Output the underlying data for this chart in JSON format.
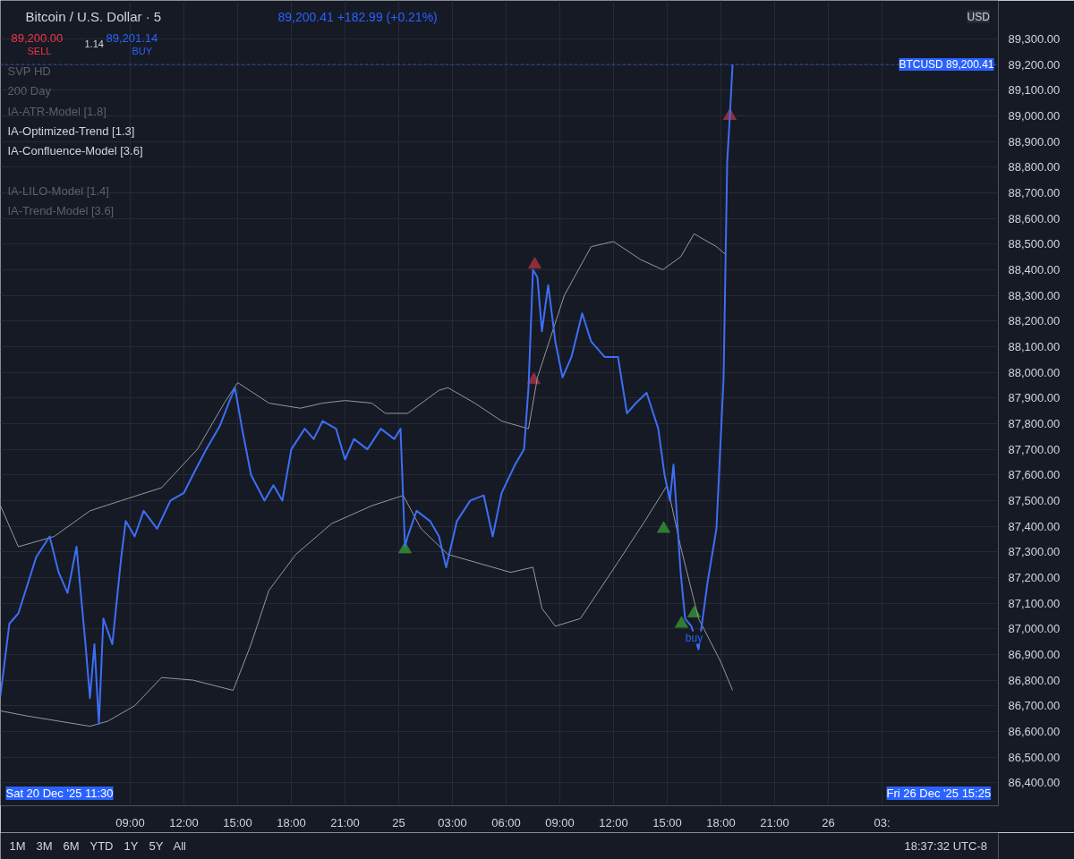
{
  "chart_data": {
    "type": "line",
    "title": "Bitcoin / U.S. Dollar · 5",
    "subtitle": "89,200.41 +182.99 (+0.21%)",
    "series": [
      {
        "color": "#9598a1",
        "x": [
          "2025-12-24T01:45",
          "2025-12-24T02:45",
          "2025-12-24T04:45",
          "2025-12-24T06:45",
          "2025-12-24T08:30",
          "2025-12-24T10:45",
          "2025-12-24T12:45",
          "2025-12-24T14:15",
          "2025-12-24T15:00",
          "2025-12-24T16:45",
          "2025-12-24T18:30",
          "2025-12-24T19:45",
          "2025-12-24T21:00",
          "2025-12-24T22:30",
          "2025-12-24T23:15",
          "2025-12-25T00:30",
          "2025-12-25T02:15",
          "2025-12-25T02:45",
          "2025-12-25T04:15",
          "2025-12-25T05:45",
          "2025-12-25T07:15",
          "2025-12-25T07:45",
          "2025-12-25T09:15",
          "2025-12-25T10:45",
          "2025-12-25T12:00",
          "2025-12-25T13:30",
          "2025-12-25T14:45",
          "2025-12-25T15:45",
          "2025-12-25T16:30",
          "2025-12-25T17:45",
          "2025-12-25T18:15"
        ],
        "values": [
          87480,
          87320,
          87360,
          87460,
          87500,
          87550,
          87700,
          87880,
          87960,
          87880,
          87860,
          87880,
          87890,
          87880,
          87840,
          87840,
          87930,
          87940,
          87880,
          87810,
          87780,
          87980,
          88300,
          88490,
          88510,
          88440,
          88400,
          88450,
          88540,
          88490,
          88460
        ]
      },
      {
        "color": "#9598a1",
        "x": [
          "2025-12-24T01:45",
          "2025-12-24T03:15",
          "2025-12-24T05:00",
          "2025-12-24T06:45",
          "2025-12-24T07:45",
          "2025-12-24T09:15",
          "2025-12-24T10:45",
          "2025-12-24T12:30",
          "2025-12-24T14:45",
          "2025-12-24T15:45",
          "2025-12-24T16:45",
          "2025-12-24T18:15",
          "2025-12-24T20:15",
          "2025-12-24T22:30",
          "2025-12-25T00:15",
          "2025-12-25T01:15",
          "2025-12-25T02:45",
          "2025-12-25T04:15",
          "2025-12-25T06:15",
          "2025-12-25T07:30",
          "2025-12-25T08:00",
          "2025-12-25T08:45",
          "2025-12-25T10:09",
          "2025-12-25T12:15",
          "2025-12-25T13:45",
          "2025-12-25T15:00",
          "2025-12-25T15:45",
          "2025-12-25T16:45",
          "2025-12-25T18:00",
          "2025-12-25T18:39"
        ],
        "values": [
          86680,
          86660,
          86640,
          86620,
          86640,
          86700,
          86810,
          86800,
          86760,
          86940,
          87150,
          87290,
          87410,
          87480,
          87520,
          87390,
          87290,
          87260,
          87220,
          87240,
          87080,
          87010,
          87040,
          87260,
          87420,
          87560,
          87320,
          87040,
          86870,
          86760
        ]
      },
      {
        "color": "#3d6ef5",
        "x": [
          "2025-12-24T01:45",
          "2025-12-24T02:15",
          "2025-12-24T02:45",
          "2025-12-24T03:45",
          "2025-12-24T04:30",
          "2025-12-24T05:00",
          "2025-12-24T05:30",
          "2025-12-24T06:00",
          "2025-12-24T06:30",
          "2025-12-24T06:45",
          "2025-12-24T07:00",
          "2025-12-24T07:15",
          "2025-12-24T07:30",
          "2025-12-24T08:00",
          "2025-12-24T08:30",
          "2025-12-24T08:45",
          "2025-12-24T09:15",
          "2025-12-24T09:45",
          "2025-12-24T10:30",
          "2025-12-24T11:15",
          "2025-12-24T12:00",
          "2025-12-24T12:30",
          "2025-12-24T13:15",
          "2025-12-24T14:00",
          "2025-12-24T14:30",
          "2025-12-24T14:51",
          "2025-12-24T15:15",
          "2025-12-24T15:45",
          "2025-12-24T16:30",
          "2025-12-24T17:00",
          "2025-12-24T17:30",
          "2025-12-24T18:00",
          "2025-12-24T18:45",
          "2025-12-24T19:15",
          "2025-12-24T19:45",
          "2025-12-24T20:30",
          "2025-12-24T21:00",
          "2025-12-24T21:30",
          "2025-12-24T22:15",
          "2025-12-24T23:00",
          "2025-12-24T23:45",
          "2025-12-25T00:06",
          "2025-12-25T00:21",
          "2025-12-25T00:30",
          "2025-12-25T01:00",
          "2025-12-25T01:45",
          "2025-12-25T02:15",
          "2025-12-25T02:39",
          "2025-12-25T03:15",
          "2025-12-25T04:00",
          "2025-12-25T04:45",
          "2025-12-25T05:15",
          "2025-12-25T05:45",
          "2025-12-25T06:30",
          "2025-12-25T07:00",
          "2025-12-25T07:15",
          "2025-12-25T07:30",
          "2025-12-25T07:45",
          "2025-12-25T08:00",
          "2025-12-25T08:21",
          "2025-12-25T08:45",
          "2025-12-25T09:09",
          "2025-12-25T09:39",
          "2025-12-25T10:15",
          "2025-12-25T10:45",
          "2025-12-25T11:30",
          "2025-12-25T12:15",
          "2025-12-25T12:45",
          "2025-12-25T13:15",
          "2025-12-25T13:51",
          "2025-12-25T14:30",
          "2025-12-25T14:51",
          "2025-12-25T15:09",
          "2025-12-25T15:21",
          "2025-12-25T15:45",
          "2025-12-25T16:00",
          "2025-12-25T16:21",
          "2025-12-25T16:45",
          "2025-12-25T17:15",
          "2025-12-25T17:45",
          "2025-12-25T18:09",
          "2025-12-25T18:21",
          "2025-12-25T18:30",
          "2025-12-25T18:39"
        ],
        "values": [
          86740,
          87020,
          87060,
          87280,
          87360,
          87220,
          87140,
          87320,
          86940,
          86730,
          86940,
          86630,
          87040,
          86940,
          87280,
          87420,
          87360,
          87460,
          87390,
          87500,
          87530,
          87600,
          87700,
          87790,
          87880,
          87940,
          87780,
          87600,
          87500,
          87560,
          87500,
          87700,
          87780,
          87740,
          87810,
          87780,
          87660,
          87740,
          87700,
          87780,
          87740,
          87780,
          87320,
          87360,
          87460,
          87420,
          87360,
          87240,
          87420,
          87500,
          87520,
          87360,
          87530,
          87640,
          87700,
          87940,
          88400,
          88370,
          88160,
          88340,
          88120,
          87980,
          88060,
          88230,
          88120,
          88060,
          88060,
          87840,
          87880,
          87920,
          87780,
          87600,
          87500,
          87640,
          87220,
          87040,
          87010,
          86920,
          87180,
          87390,
          87980,
          88820,
          89000,
          89200
        ]
      },
      {
        "type": "scatter",
        "marker": "triangle",
        "color": "#2e7d32",
        "x": [
          "2025-12-25T00:21",
          "2025-12-25T14:48",
          "2025-12-25T15:48",
          "2025-12-25T16:30"
        ],
        "values": [
          87310,
          87390,
          87020,
          87060
        ]
      },
      {
        "type": "scatter",
        "marker": "triangle",
        "color": "#8b2f3e",
        "x": [
          "2025-12-25T07:36",
          "2025-12-25T07:33",
          "2025-12-25T18:30"
        ],
        "values": [
          88420,
          87970,
          89000
        ]
      }
    ],
    "xlim": [
      "2025-12-24T01:45",
      "2025-12-26T09:30"
    ],
    "ylim": [
      86310,
      89450
    ],
    "xticks": [
      {
        "value": "2025-12-24T09:00",
        "label": "09:00"
      },
      {
        "value": "2025-12-24T12:00",
        "label": "12:00"
      },
      {
        "value": "2025-12-24T15:00",
        "label": "15:00"
      },
      {
        "value": "2025-12-24T18:00",
        "label": "18:00"
      },
      {
        "value": "2025-12-24T21:00",
        "label": "21:00"
      },
      {
        "value": "2025-12-25T00:00",
        "label": "25"
      },
      {
        "value": "2025-12-25T03:00",
        "label": "03:00"
      },
      {
        "value": "2025-12-25T06:00",
        "label": "06:00"
      },
      {
        "value": "2025-12-25T09:00",
        "label": "09:00"
      },
      {
        "value": "2025-12-25T12:00",
        "label": "12:00"
      },
      {
        "value": "2025-12-25T15:00",
        "label": "15:00"
      },
      {
        "value": "2025-12-25T18:00",
        "label": "18:00"
      },
      {
        "value": "2025-12-25T21:00",
        "label": "21:00"
      },
      {
        "value": "2025-12-26T00:00",
        "label": "26"
      },
      {
        "value": "2025-12-26T03:00",
        "label": "03:"
      }
    ],
    "yticks": [
      {
        "value": 86400,
        "label": "86,400.00"
      },
      {
        "value": 86500,
        "label": "86,500.00"
      },
      {
        "value": 86600,
        "label": "86,600.00"
      },
      {
        "value": 86700,
        "label": "86,700.00"
      },
      {
        "value": 86800,
        "label": "86,800.00"
      },
      {
        "value": 86900,
        "label": "86,900.00"
      },
      {
        "value": 87000,
        "label": "87,000.00"
      },
      {
        "value": 87100,
        "label": "87,100.00"
      },
      {
        "value": 87200,
        "label": "87,200.00"
      },
      {
        "value": 87300,
        "label": "87,300.00"
      },
      {
        "value": 87400,
        "label": "87,400.00"
      },
      {
        "value": 87500,
        "label": "87,500.00"
      },
      {
        "value": 87600,
        "label": "87,600.00"
      },
      {
        "value": 87700,
        "label": "87,700.00"
      },
      {
        "value": 87800,
        "label": "87,800.00"
      },
      {
        "value": 87900,
        "label": "87,900.00"
      },
      {
        "value": 88000,
        "label": "88,000.00"
      },
      {
        "value": 88100,
        "label": "88,100.00"
      },
      {
        "value": 88200,
        "label": "88,200.00"
      },
      {
        "value": 88300,
        "label": "88,300.00"
      },
      {
        "value": 88400,
        "label": "88,400.00"
      },
      {
        "value": 88500,
        "label": "88,500.00"
      },
      {
        "value": 88600,
        "label": "88,600.00"
      },
      {
        "value": 88700,
        "label": "88,700.00"
      },
      {
        "value": 88800,
        "label": "88,800.00"
      },
      {
        "value": 88900,
        "label": "88,900.00"
      },
      {
        "value": 89000,
        "label": "89,000.00"
      },
      {
        "value": 89100,
        "label": "89,100.00"
      },
      {
        "value": 89200,
        "label": "89,200.00"
      },
      {
        "value": 89300,
        "label": "89,300.00"
      }
    ],
    "ref_lines": [
      {
        "axis": "y",
        "value": 89200.41,
        "label": "BTCUSD 89,200.41",
        "color": "#2962ff",
        "line_style": "dotted"
      }
    ],
    "grid": true,
    "line_style": "solid",
    "annotations": [
      "89,200.00",
      "SELL",
      "1.14",
      "89,201.14",
      "BUY",
      "SVP HD",
      "200 Day",
      "IA-ATR-Model [1.8]",
      "IA-Optimized-Trend [1.3]",
      "IA-Confluence-Model [3.6]",
      "IA-LILO-Model [1.4]",
      "IA-Trend-Model [3.6]",
      "USD",
      "Sat 20 Dec '25 11:30",
      "Fri 26 Dec '25 15:25",
      "1M",
      "3M",
      "6M",
      "YTD",
      "1Y",
      "5Y",
      "All",
      "18:37:32 UTC-8",
      {
        "text": "buy",
        "x": "2025-12-25T16:30",
        "y": 86990
      }
    ]
  }
}
